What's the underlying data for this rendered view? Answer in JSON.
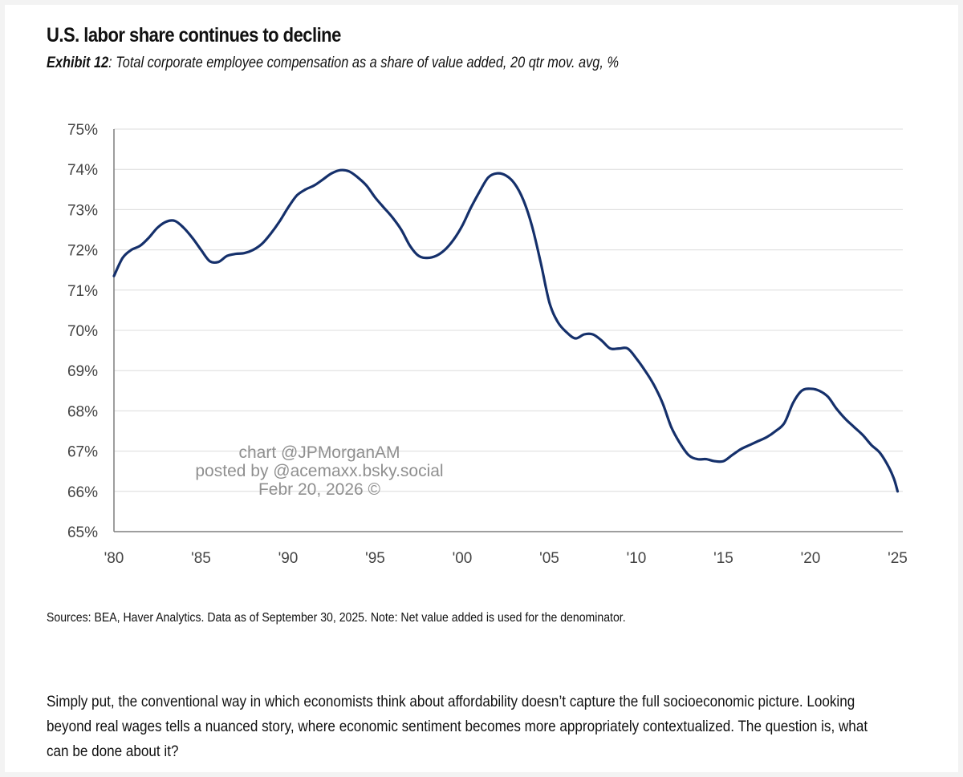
{
  "header": {
    "title": "U.S. labor share continues to decline",
    "exhibit_label": "Exhibit 12",
    "subtitle": ": Total corporate employee compensation as a share of value added, 20 qtr mov. avg, %"
  },
  "watermark": {
    "line1": "chart @JPMorganAM",
    "line2": "posted by @acemaxx.bsky.social",
    "line3": "Febr 20, 2026 ©"
  },
  "footer": {
    "source": "Sources: BEA, Haver Analytics. Data as of September 30, 2025. Note: Net value added is used for the denominator.",
    "body": "Simply put, the conventional way in which economists think about affordability doesn’t capture the full socioeconomic picture. Looking beyond real wages tells a nuanced story, where economic sentiment becomes more appropriately contextualized. The question is, what can be done about it?"
  },
  "colors": {
    "line": "#15306b",
    "grid": "#dcdcdc",
    "axis": "#7f7f7f",
    "tick_text": "#444444"
  },
  "chart_data": {
    "type": "line",
    "title": "U.S. labor share continues to decline",
    "subtitle": "Exhibit 12: Total corporate employee compensation as a share of value added, 20 qtr mov. avg, %",
    "xlabel": "",
    "ylabel": "",
    "xlim": [
      1980,
      2025.3
    ],
    "ylim": [
      65,
      75
    ],
    "grid": "horizontal",
    "legend": "none",
    "x_ticks": [
      1980,
      1985,
      1990,
      1995,
      2000,
      2005,
      2010,
      2015,
      2020,
      2025
    ],
    "x_tick_labels": [
      "'80",
      "'85",
      "'90",
      "'95",
      "'00",
      "'05",
      "'10",
      "'15",
      "'20",
      "'25"
    ],
    "y_ticks": [
      65,
      66,
      67,
      68,
      69,
      70,
      71,
      72,
      73,
      74,
      75
    ],
    "y_tick_labels": [
      "65%",
      "66%",
      "67%",
      "68%",
      "69%",
      "70%",
      "71%",
      "72%",
      "73%",
      "74%",
      "75%"
    ],
    "series": [
      {
        "values": [
          [
            1980.0,
            71.35
          ],
          [
            1980.5,
            71.8
          ],
          [
            1981.0,
            72.0
          ],
          [
            1981.5,
            72.1
          ],
          [
            1982.0,
            72.3
          ],
          [
            1982.5,
            72.55
          ],
          [
            1983.0,
            72.7
          ],
          [
            1983.5,
            72.72
          ],
          [
            1984.0,
            72.55
          ],
          [
            1984.5,
            72.3
          ],
          [
            1985.0,
            72.0
          ],
          [
            1985.5,
            71.72
          ],
          [
            1986.0,
            71.7
          ],
          [
            1986.5,
            71.85
          ],
          [
            1987.0,
            71.9
          ],
          [
            1987.5,
            71.92
          ],
          [
            1988.0,
            72.0
          ],
          [
            1988.5,
            72.15
          ],
          [
            1989.0,
            72.4
          ],
          [
            1989.5,
            72.7
          ],
          [
            1990.0,
            73.05
          ],
          [
            1990.5,
            73.35
          ],
          [
            1991.0,
            73.5
          ],
          [
            1991.5,
            73.6
          ],
          [
            1992.0,
            73.75
          ],
          [
            1992.5,
            73.9
          ],
          [
            1993.0,
            73.98
          ],
          [
            1993.5,
            73.95
          ],
          [
            1994.0,
            73.8
          ],
          [
            1994.5,
            73.6
          ],
          [
            1995.0,
            73.3
          ],
          [
            1995.5,
            73.05
          ],
          [
            1996.0,
            72.8
          ],
          [
            1996.5,
            72.5
          ],
          [
            1997.0,
            72.1
          ],
          [
            1997.5,
            71.85
          ],
          [
            1998.0,
            71.8
          ],
          [
            1998.5,
            71.85
          ],
          [
            1999.0,
            72.0
          ],
          [
            1999.5,
            72.25
          ],
          [
            2000.0,
            72.6
          ],
          [
            2000.5,
            73.05
          ],
          [
            2001.0,
            73.45
          ],
          [
            2001.5,
            73.8
          ],
          [
            2002.0,
            73.9
          ],
          [
            2002.5,
            73.85
          ],
          [
            2003.0,
            73.65
          ],
          [
            2003.5,
            73.25
          ],
          [
            2004.0,
            72.6
          ],
          [
            2004.5,
            71.7
          ],
          [
            2005.0,
            70.7
          ],
          [
            2005.5,
            70.2
          ],
          [
            2006.0,
            69.95
          ],
          [
            2006.5,
            69.8
          ],
          [
            2007.0,
            69.9
          ],
          [
            2007.5,
            69.9
          ],
          [
            2008.0,
            69.75
          ],
          [
            2008.5,
            69.55
          ],
          [
            2009.0,
            69.55
          ],
          [
            2009.5,
            69.55
          ],
          [
            2010.0,
            69.3
          ],
          [
            2010.5,
            69.0
          ],
          [
            2011.0,
            68.65
          ],
          [
            2011.5,
            68.2
          ],
          [
            2012.0,
            67.6
          ],
          [
            2012.5,
            67.2
          ],
          [
            2013.0,
            66.9
          ],
          [
            2013.5,
            66.8
          ],
          [
            2014.0,
            66.8
          ],
          [
            2014.5,
            66.75
          ],
          [
            2015.0,
            66.75
          ],
          [
            2015.5,
            66.9
          ],
          [
            2016.0,
            67.05
          ],
          [
            2016.5,
            67.15
          ],
          [
            2017.0,
            67.25
          ],
          [
            2017.5,
            67.35
          ],
          [
            2018.0,
            67.5
          ],
          [
            2018.5,
            67.7
          ],
          [
            2019.0,
            68.2
          ],
          [
            2019.5,
            68.5
          ],
          [
            2020.0,
            68.55
          ],
          [
            2020.5,
            68.5
          ],
          [
            2021.0,
            68.35
          ],
          [
            2021.5,
            68.05
          ],
          [
            2022.0,
            67.8
          ],
          [
            2022.5,
            67.6
          ],
          [
            2023.0,
            67.4
          ],
          [
            2023.5,
            67.15
          ],
          [
            2024.0,
            66.95
          ],
          [
            2024.5,
            66.6
          ],
          [
            2024.8,
            66.3
          ],
          [
            2025.0,
            66.0
          ]
        ]
      }
    ]
  }
}
